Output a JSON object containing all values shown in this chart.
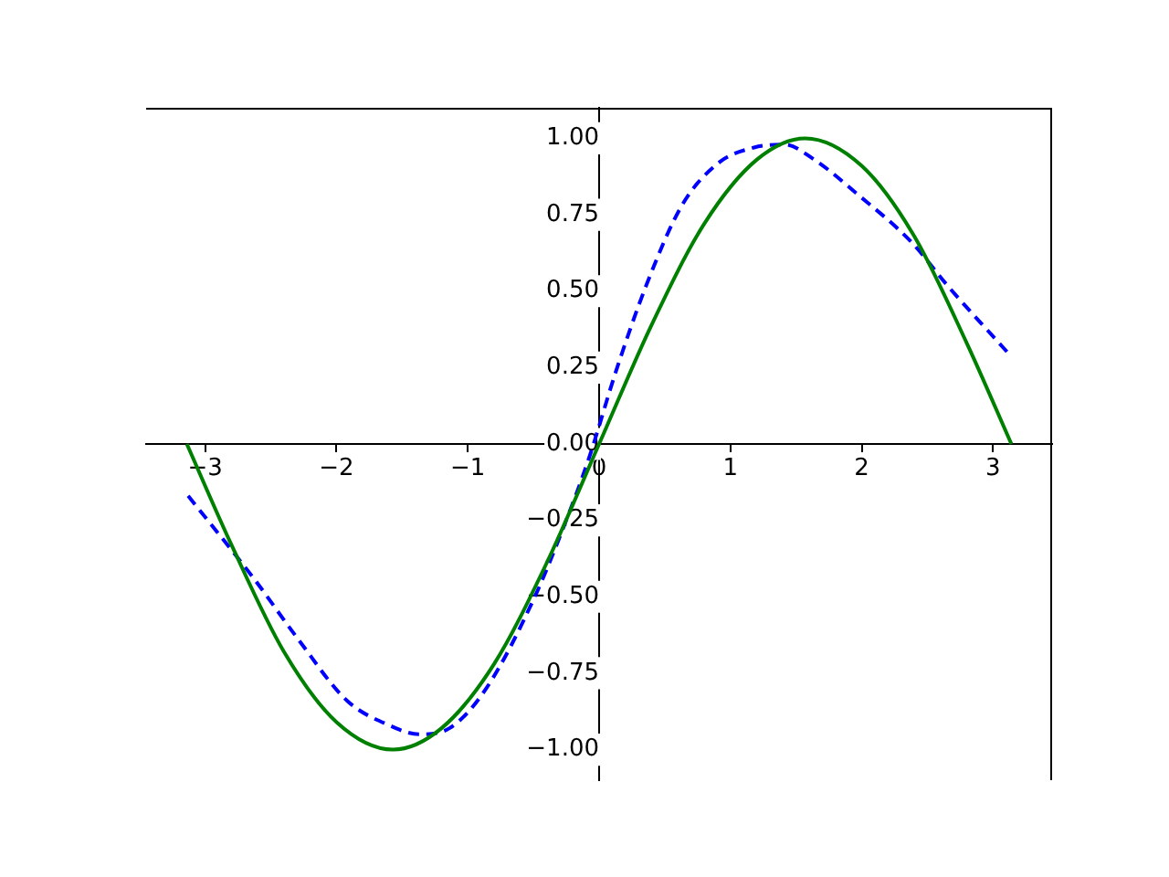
{
  "chart_data": {
    "type": "line",
    "xlim": [
      -3.45,
      3.45
    ],
    "ylim": [
      -1.1,
      1.1
    ],
    "xticks": [
      {
        "value": -3,
        "label": "−3"
      },
      {
        "value": -2,
        "label": "−2"
      },
      {
        "value": -1,
        "label": "−1"
      },
      0,
      1,
      2,
      3
    ],
    "yticks": [
      {
        "value": -1,
        "label": "−1.00"
      },
      {
        "value": -0.75,
        "label": "−0.75"
      },
      {
        "value": -0.5,
        "label": "−0.50"
      },
      {
        "value": -0.25,
        "label": "−0.25"
      },
      {
        "value": 0,
        "label": "0.00"
      },
      {
        "value": 0.25,
        "label": "0.25"
      },
      {
        "value": 0.5,
        "label": "0.50"
      },
      {
        "value": 0.75,
        "label": "0.75"
      },
      {
        "value": 1,
        "label": "1.00"
      }
    ],
    "grid": false,
    "legend": false,
    "marker": "none",
    "series": [
      {
        "color": "#008000",
        "line_style": "solid",
        "x": [
          -3.14,
          -2.8,
          -2.4,
          -2.0,
          -1.57,
          -1.2,
          -0.8,
          -0.4,
          0,
          0.4,
          0.8,
          1.2,
          1.57,
          2.0,
          2.4,
          2.8,
          3.14
        ],
        "values": [
          0,
          -0.33,
          -0.68,
          -0.91,
          -1,
          -0.93,
          -0.72,
          -0.39,
          0,
          0.39,
          0.72,
          0.93,
          1,
          0.91,
          0.68,
          0.33,
          0
        ]
      },
      {
        "color": "#0000ff",
        "line_style": "dashed",
        "x": [
          -3.13,
          -2.63,
          -2.29,
          -1.92,
          -1.6,
          -1.37,
          -1.14,
          -0.86,
          -0.49,
          -0.26,
          -0.08,
          0.13,
          0.36,
          0.63,
          0.91,
          1.18,
          1.41,
          1.64,
          1.96,
          2.38,
          2.65,
          3.11
        ],
        "values": [
          -0.17,
          -0.44,
          -0.64,
          -0.84,
          -0.92,
          -0.95,
          -0.93,
          -0.8,
          -0.5,
          -0.26,
          -0.05,
          0.24,
          0.52,
          0.78,
          0.92,
          0.97,
          0.98,
          0.93,
          0.82,
          0.66,
          0.52,
          0.3
        ]
      }
    ]
  }
}
